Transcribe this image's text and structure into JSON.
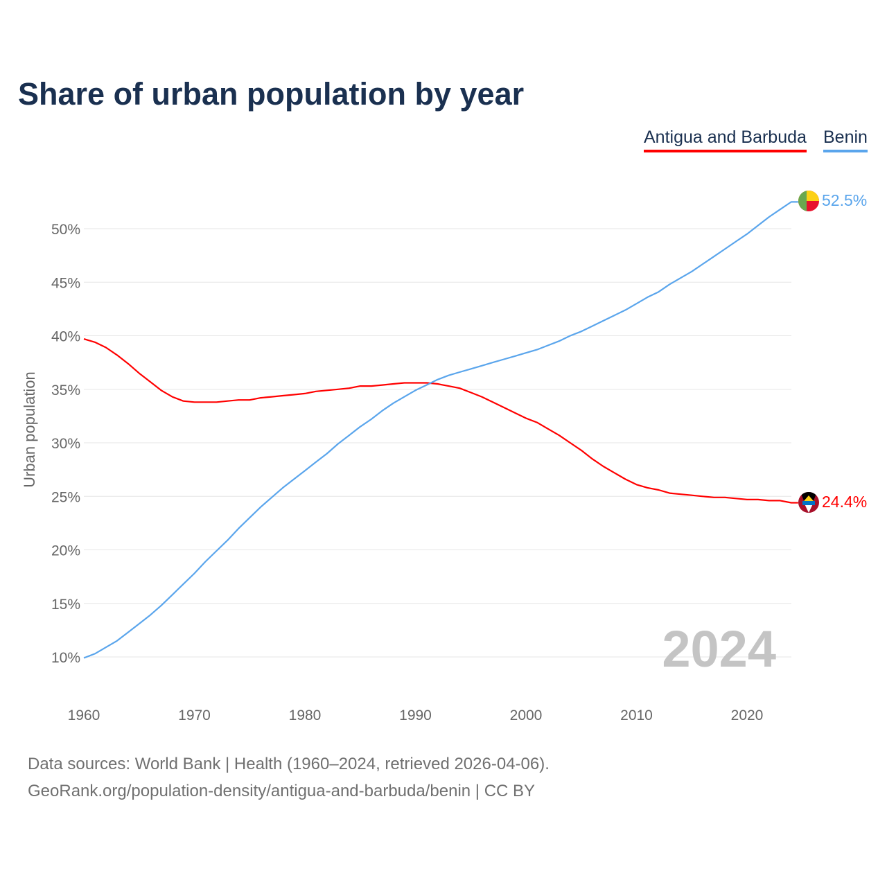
{
  "chart_data": {
    "type": "line",
    "title": "Share of urban population by year",
    "xlabel": "",
    "ylabel": "Urban population",
    "xlim": [
      1960,
      2024
    ],
    "ylim": [
      10,
      52.5
    ],
    "x_ticks": [
      "1960",
      "1970",
      "1980",
      "1990",
      "2000",
      "2010",
      "2020"
    ],
    "y_ticks": [
      "10%",
      "15%",
      "20%",
      "25%",
      "30%",
      "35%",
      "40%",
      "45%",
      "50%"
    ],
    "y_tick_values": [
      10,
      15,
      20,
      25,
      30,
      35,
      40,
      45,
      50
    ],
    "grid": true,
    "legend_position": "top-right",
    "year_watermark": "2024",
    "x": [
      1960,
      1961,
      1962,
      1963,
      1964,
      1965,
      1966,
      1967,
      1968,
      1969,
      1970,
      1971,
      1972,
      1973,
      1974,
      1975,
      1976,
      1977,
      1978,
      1979,
      1980,
      1981,
      1982,
      1983,
      1984,
      1985,
      1986,
      1987,
      1988,
      1989,
      1990,
      1991,
      1992,
      1993,
      1994,
      1995,
      1996,
      1997,
      1998,
      1999,
      2000,
      2001,
      2002,
      2003,
      2004,
      2005,
      2006,
      2007,
      2008,
      2009,
      2010,
      2011,
      2012,
      2013,
      2014,
      2015,
      2016,
      2017,
      2018,
      2019,
      2020,
      2021,
      2022,
      2023,
      2024
    ],
    "series": [
      {
        "name": "Antigua and Barbuda",
        "color": "#ff0000",
        "end_label": "24.4%",
        "values": [
          39.7,
          39.4,
          38.9,
          38.2,
          37.4,
          36.5,
          35.7,
          34.9,
          34.3,
          33.9,
          33.8,
          33.8,
          33.8,
          33.9,
          34.0,
          34.0,
          34.2,
          34.3,
          34.4,
          34.5,
          34.6,
          34.8,
          34.9,
          35.0,
          35.1,
          35.3,
          35.3,
          35.4,
          35.5,
          35.6,
          35.6,
          35.6,
          35.5,
          35.3,
          35.1,
          34.7,
          34.3,
          33.8,
          33.3,
          32.8,
          32.3,
          31.9,
          31.3,
          30.7,
          30.0,
          29.3,
          28.5,
          27.8,
          27.2,
          26.6,
          26.1,
          25.8,
          25.6,
          25.3,
          25.2,
          25.1,
          25.0,
          24.9,
          24.9,
          24.8,
          24.7,
          24.7,
          24.6,
          24.6,
          24.4
        ]
      },
      {
        "name": "Benin",
        "color": "#5aa5ec",
        "end_label": "52.5%",
        "values": [
          9.9,
          10.3,
          10.9,
          11.5,
          12.3,
          13.1,
          13.9,
          14.8,
          15.8,
          16.8,
          17.8,
          18.9,
          19.9,
          20.9,
          22.0,
          23.0,
          24.0,
          24.9,
          25.8,
          26.6,
          27.4,
          28.2,
          29.0,
          29.9,
          30.7,
          31.5,
          32.2,
          33.0,
          33.7,
          34.3,
          34.9,
          35.4,
          35.9,
          36.3,
          36.6,
          36.9,
          37.2,
          37.5,
          37.8,
          38.1,
          38.4,
          38.7,
          39.1,
          39.5,
          40.0,
          40.4,
          40.9,
          41.4,
          41.9,
          42.4,
          43.0,
          43.6,
          44.1,
          44.8,
          45.4,
          46.0,
          46.7,
          47.4,
          48.1,
          48.8,
          49.5,
          50.3,
          51.1,
          51.8,
          52.5
        ]
      }
    ]
  },
  "footer": {
    "line1": "Data sources: World Bank | Health (1960–2024, retrieved 2026-04-06).",
    "line2": "GeoRank.org/population-density/antigua-and-barbuda/benin | CC BY"
  }
}
